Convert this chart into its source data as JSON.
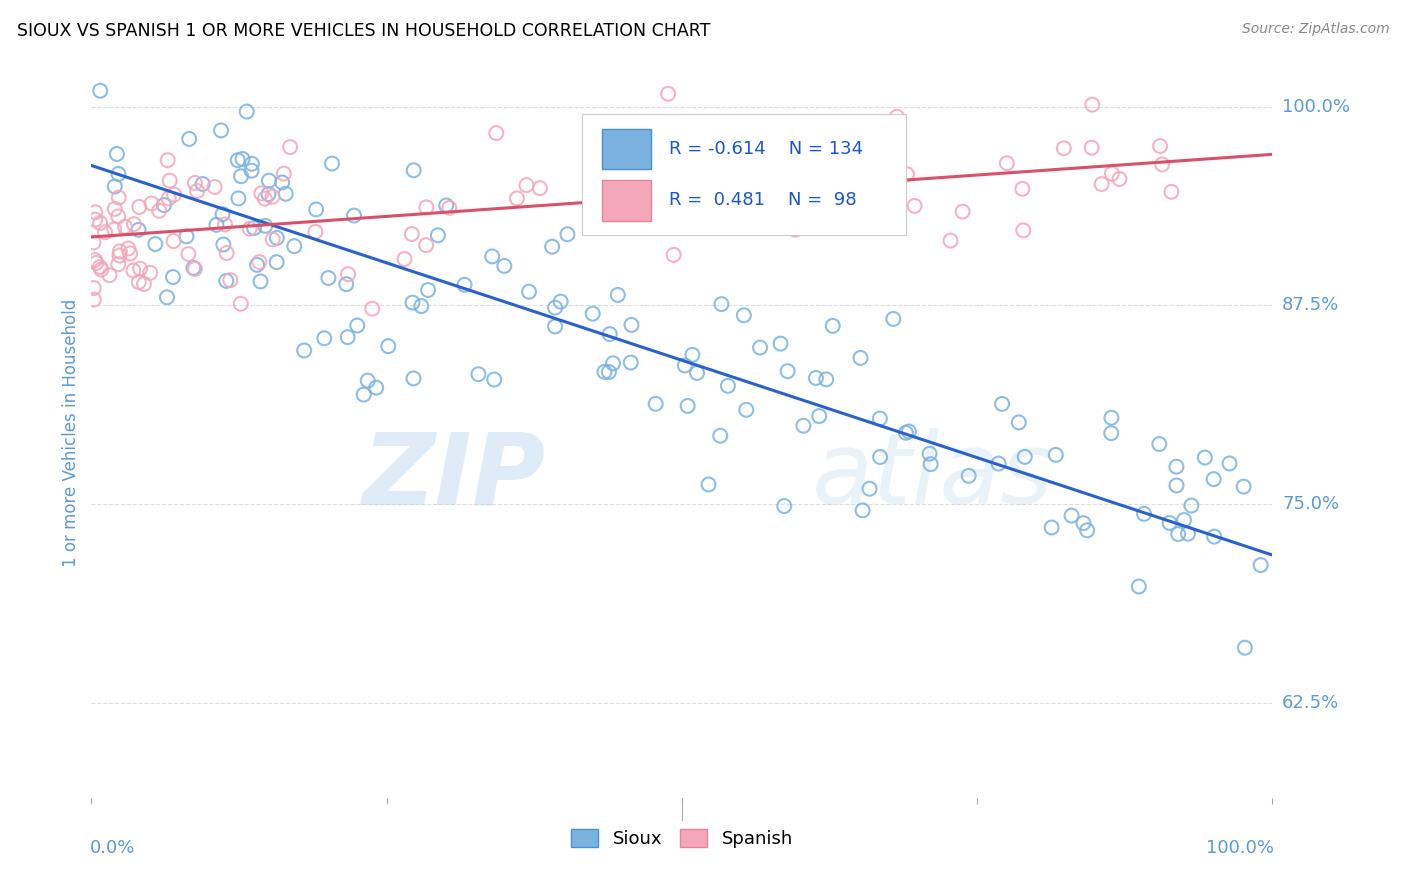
{
  "title": "SIOUX VS SPANISH 1 OR MORE VEHICLES IN HOUSEHOLD CORRELATION CHART",
  "source": "Source: ZipAtlas.com",
  "ylabel": "1 or more Vehicles in Household",
  "ytick_labels": [
    "62.5%",
    "75.0%",
    "87.5%",
    "100.0%"
  ],
  "ytick_values": [
    0.625,
    0.75,
    0.875,
    1.0
  ],
  "legend_sioux": "Sioux",
  "legend_spanish": "Spanish",
  "R_sioux": -0.614,
  "N_sioux": 134,
  "R_spanish": 0.481,
  "N_spanish": 98,
  "sioux_color": "#7ab3e0",
  "spanish_color": "#f4a7b9",
  "sioux_edge_color": "#4a90d0",
  "spanish_edge_color": "#e8829a",
  "sioux_line_color": "#2962cc",
  "spanish_line_color": "#d9506a",
  "watermark_zip": "ZIP",
  "watermark_atlas": "atlas",
  "xlim": [
    0.0,
    1.0
  ],
  "ylim_low": 0.565,
  "ylim_high": 1.025,
  "sioux_trend_x0": 0.0,
  "sioux_trend_y0": 0.963,
  "sioux_trend_x1": 1.0,
  "sioux_trend_y1": 0.718,
  "spanish_trend_x0": 0.0,
  "spanish_trend_y0": 0.918,
  "spanish_trend_x1": 1.0,
  "spanish_trend_y1": 0.97,
  "xtick_positions": [
    0.0,
    0.25,
    0.5,
    0.75,
    1.0
  ],
  "background_color": "#ffffff",
  "grid_color": "#dddddd"
}
